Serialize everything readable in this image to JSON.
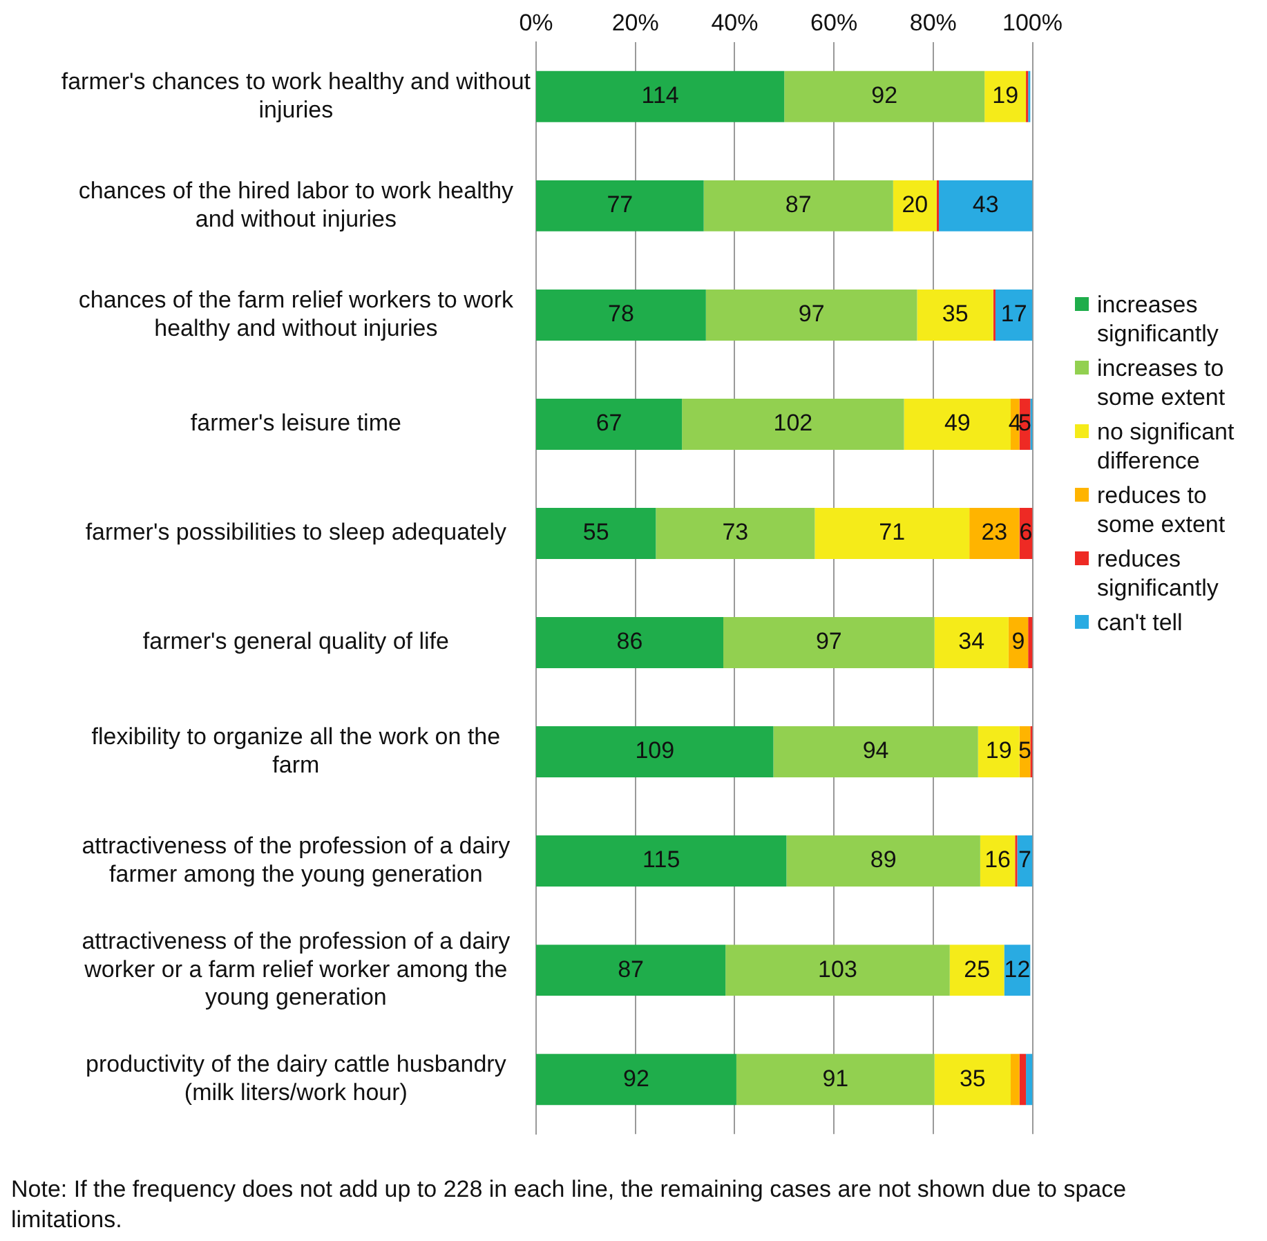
{
  "chart_data": {
    "type": "bar",
    "orientation": "horizontal",
    "stacked": true,
    "categories": [
      "farmer's chances to work healthy and without injuries",
      "chances of the hired labor to work healthy and without injuries",
      "chances of the farm relief workers to work healthy and without injuries",
      "farmer's leisure time",
      "farmer's possibilities to sleep adequately",
      "farmer's general quality of life",
      "flexibility to organize all the work on the farm",
      "attractiveness of the profession of a dairy farmer among the young generation",
      "attractiveness of the profession of a dairy worker or a farm relief worker among the young generation",
      "productivity of the dairy cattle husbandry (milk liters/work hour)"
    ],
    "series": [
      {
        "name": "increases significantly",
        "color": "#1fad4b",
        "values": [
          114,
          77,
          78,
          67,
          55,
          86,
          109,
          115,
          87,
          92
        ],
        "value_labels": [
          "114",
          "77",
          "78",
          "67",
          "55",
          "86",
          "109",
          "115",
          "87",
          "92"
        ]
      },
      {
        "name": "increases to some extent",
        "color": "#92d050",
        "values": [
          92,
          87,
          97,
          102,
          73,
          97,
          94,
          89,
          103,
          91
        ],
        "value_labels": [
          "92",
          "87",
          "97",
          "102",
          "73",
          "97",
          "94",
          "89",
          "103",
          "91"
        ]
      },
      {
        "name": "no significant difference",
        "color": "#f5eb19",
        "values": [
          19,
          20,
          35,
          49,
          71,
          34,
          19,
          16,
          25,
          35
        ],
        "value_labels": [
          "19",
          "20",
          "35",
          "49",
          "71",
          "34",
          "19",
          "16",
          "25",
          "35"
        ]
      },
      {
        "name": "reduces to some extent",
        "color": "#ffb400",
        "values": [
          null,
          null,
          null,
          4,
          23,
          9,
          5,
          null,
          null,
          4
        ],
        "value_labels": [
          null,
          null,
          null,
          "4",
          "23",
          "9",
          "5",
          null,
          null,
          null
        ]
      },
      {
        "name": "reduces significantly",
        "color": "#ee2a24",
        "values": [
          1,
          1,
          1,
          5,
          6,
          2,
          1,
          1,
          null,
          3
        ],
        "value_labels": [
          null,
          null,
          null,
          "5",
          "6",
          null,
          null,
          null,
          null,
          null
        ]
      },
      {
        "name": "can't tell",
        "color": "#29abe2",
        "values": [
          1,
          43,
          17,
          1,
          null,
          null,
          null,
          7,
          12,
          3
        ],
        "value_labels": [
          null,
          "43",
          "17",
          null,
          null,
          null,
          null,
          "7",
          "12",
          null
        ]
      }
    ],
    "xlim": [
      0,
      228
    ],
    "x2lim": [
      0,
      100
    ],
    "x2ticks": [
      {
        "value": 0,
        "label": "0%"
      },
      {
        "value": 20,
        "label": "20%"
      },
      {
        "value": 40,
        "label": "40%"
      },
      {
        "value": 60,
        "label": "60%"
      },
      {
        "value": 80,
        "label": "80%"
      },
      {
        "value": 100,
        "label": "100%"
      }
    ],
    "grid": "x",
    "legend": "right",
    "annotations": [
      "Note: If the frequency does not add up to 228 in each line, the remaining cases are not shown due to space limitations."
    ]
  }
}
